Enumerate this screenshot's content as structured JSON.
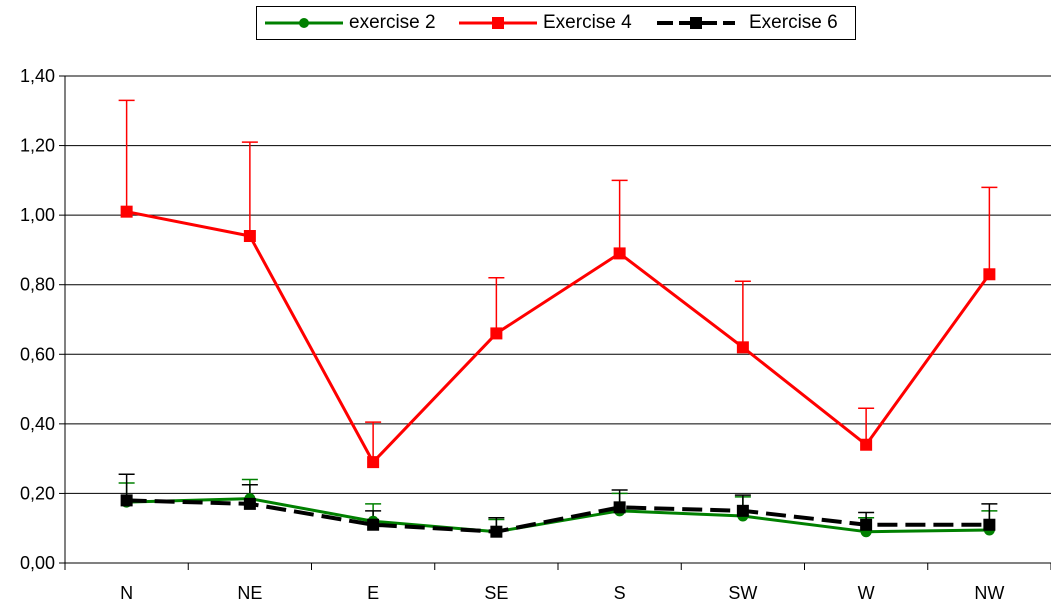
{
  "chart_data": {
    "type": "line",
    "categories": [
      "N",
      "NE",
      "E",
      "SE",
      "S",
      "SW",
      "W",
      "NW"
    ],
    "ylim": [
      0,
      1.4
    ],
    "yticks": [
      "0,00",
      "0,20",
      "0,40",
      "0,60",
      "0,80",
      "1,00",
      "1,20",
      "1,40"
    ],
    "grid": "horizontal",
    "legend_position": "top",
    "series": [
      {
        "name": "exercise 2",
        "color": "#008000",
        "marker": "circle",
        "dash": "solid",
        "values": [
          0.175,
          0.185,
          0.12,
          0.09,
          0.15,
          0.135,
          0.09,
          0.095
        ],
        "error_upper": [
          0.23,
          0.24,
          0.17,
          0.125,
          0.2,
          0.19,
          0.13,
          0.15
        ]
      },
      {
        "name": "Exercise 4",
        "color": "#ff0000",
        "marker": "square",
        "dash": "solid",
        "values": [
          1.01,
          0.94,
          0.29,
          0.66,
          0.89,
          0.62,
          0.34,
          0.83
        ],
        "error_upper": [
          1.33,
          1.21,
          0.405,
          0.82,
          1.1,
          0.81,
          0.445,
          1.08
        ]
      },
      {
        "name": "Exercise 6",
        "color": "#000000",
        "marker": "square",
        "dash": "dashed",
        "values": [
          0.18,
          0.17,
          0.11,
          0.09,
          0.16,
          0.15,
          0.11,
          0.11
        ],
        "error_upper": [
          0.255,
          0.225,
          0.15,
          0.13,
          0.21,
          0.195,
          0.145,
          0.17
        ]
      }
    ]
  }
}
